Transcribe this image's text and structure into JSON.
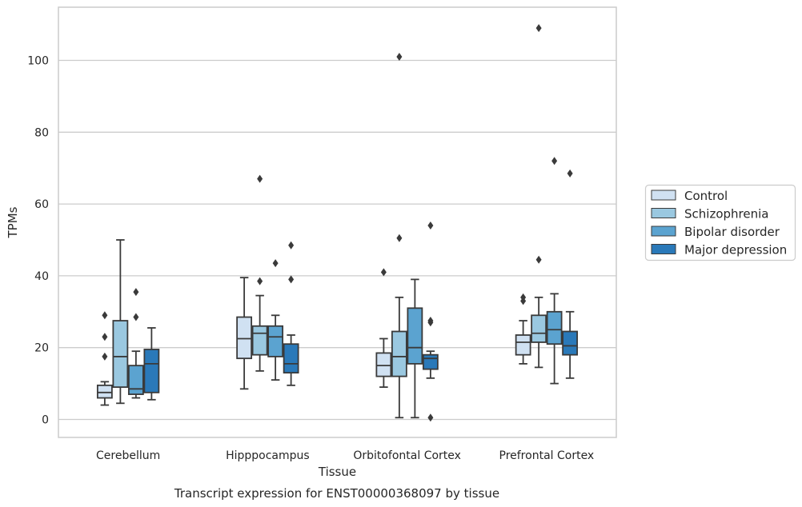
{
  "chart_data": {
    "type": "box",
    "caption": "Transcript expression for ENST00000368097 by tissue",
    "xlabel": "Tissue",
    "ylabel": "TPMs",
    "ylim": [
      -5,
      115
    ],
    "yticks": [
      0,
      20,
      40,
      60,
      80,
      100
    ],
    "grid": "horizontal",
    "legend_position": "right",
    "categories": [
      "Cerebellum",
      "Hipppocampus",
      "Orbitofontal Cortex",
      "Prefrontal Cortex"
    ],
    "series": [
      {
        "name": "Control",
        "color": "#d0e1f2",
        "boxes": [
          {
            "whisker_low": 4,
            "q1": 6,
            "median": 7.5,
            "q3": 9.5,
            "whisker_high": 10.5,
            "outliers": [
              17.5,
              23,
              29
            ]
          },
          {
            "whisker_low": 8.5,
            "q1": 17,
            "median": 22.5,
            "q3": 28.5,
            "whisker_high": 39.5,
            "outliers": []
          },
          {
            "whisker_low": 9,
            "q1": 12,
            "median": 15,
            "q3": 18.5,
            "whisker_high": 22.5,
            "outliers": [
              41
            ]
          },
          {
            "whisker_low": 15.5,
            "q1": 18,
            "median": 21.5,
            "q3": 23.5,
            "whisker_high": 27.5,
            "outliers": [
              33,
              34
            ]
          }
        ]
      },
      {
        "name": "Schizophrenia",
        "color": "#9ac8e0",
        "boxes": [
          {
            "whisker_low": 4.5,
            "q1": 9,
            "median": 17.5,
            "q3": 27.5,
            "whisker_high": 50,
            "outliers": []
          },
          {
            "whisker_low": 13.5,
            "q1": 18,
            "median": 24,
            "q3": 26,
            "whisker_high": 34.5,
            "outliers": [
              38.5,
              67
            ]
          },
          {
            "whisker_low": 0.5,
            "q1": 12,
            "median": 17.5,
            "q3": 24.5,
            "whisker_high": 34,
            "outliers": [
              50.5,
              101
            ]
          },
          {
            "whisker_low": 14.5,
            "q1": 21.5,
            "median": 24,
            "q3": 29,
            "whisker_high": 34,
            "outliers": [
              44.5,
              109
            ]
          }
        ]
      },
      {
        "name": "Bipolar disorder",
        "color": "#5ba3d0",
        "boxes": [
          {
            "whisker_low": 6,
            "q1": 7,
            "median": 8.5,
            "q3": 15,
            "whisker_high": 19,
            "outliers": [
              28.5,
              35.5
            ]
          },
          {
            "whisker_low": 11,
            "q1": 17.5,
            "median": 23,
            "q3": 26,
            "whisker_high": 29,
            "outliers": [
              43.5
            ]
          },
          {
            "whisker_low": 0.5,
            "q1": 15.5,
            "median": 20,
            "q3": 31,
            "whisker_high": 39,
            "outliers": []
          },
          {
            "whisker_low": 10,
            "q1": 21,
            "median": 25,
            "q3": 30,
            "whisker_high": 35,
            "outliers": [
              72
            ]
          }
        ]
      },
      {
        "name": "Major depression",
        "color": "#2a79b9",
        "boxes": [
          {
            "whisker_low": 5.5,
            "q1": 7.5,
            "median": 15.5,
            "q3": 19.5,
            "whisker_high": 25.5,
            "outliers": []
          },
          {
            "whisker_low": 9.5,
            "q1": 13,
            "median": 15.5,
            "q3": 21,
            "whisker_high": 23.5,
            "outliers": [
              39,
              48.5
            ]
          },
          {
            "whisker_low": 11.5,
            "q1": 14,
            "median": 17,
            "q3": 18,
            "whisker_high": 19,
            "outliers": [
              0.5,
              27,
              27.5,
              54
            ]
          },
          {
            "whisker_low": 11.5,
            "q1": 18,
            "median": 20.5,
            "q3": 24.5,
            "whisker_high": 30,
            "outliers": [
              68.5
            ]
          }
        ]
      }
    ]
  }
}
